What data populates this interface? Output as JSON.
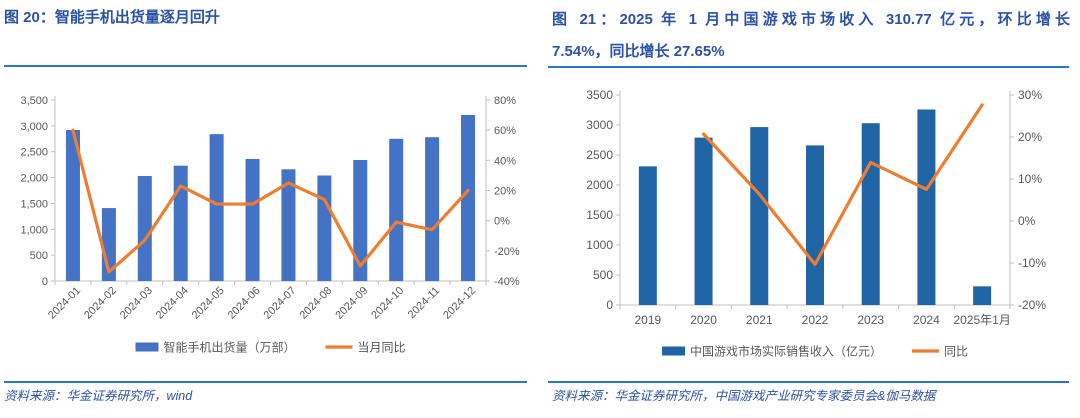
{
  "colors": {
    "title_blue": "#2B52A6",
    "rule_blue": "#2B74C8",
    "source_blue": "#2B52A6",
    "axis_text": "#595959",
    "axis_line": "#BFBFBF",
    "bar_blue_left_chart": "#4472C4",
    "bar_blue_right_chart": "#1F64A5",
    "line_orange": "#ED7D31"
  },
  "left_panel": {
    "title": "图 20：智能手机出货量逐月回升",
    "source": "资料来源：华金证券研究所，wind"
  },
  "right_panel": {
    "title_lines": [
      "图 21：2025 年 1 月中国游戏市场收入 310.77 亿元，环比增长",
      "7.54%，同比增长 27.65%"
    ],
    "source": "资料来源：华金证券研究所，中国游戏产业研究专家委员会&伽马数据"
  },
  "chart_data": [
    {
      "type": "bar",
      "title": "图 20：智能手机出货量逐月回升",
      "categories": [
        "2024-01",
        "2024-02",
        "2024-03",
        "2024-04",
        "2024-05",
        "2024-06",
        "2024-07",
        "2024-08",
        "2024-09",
        "2024-10",
        "2024-11",
        "2024-12"
      ],
      "series": [
        {
          "name": "智能手机出货量（万部）",
          "type": "bar",
          "axis": "left",
          "values": [
            2920,
            1410,
            2030,
            2230,
            2840,
            2360,
            2160,
            2040,
            2340,
            2750,
            2780,
            3210
          ]
        },
        {
          "name": "当月同比",
          "type": "line",
          "axis": "right",
          "values": [
            60,
            -34,
            -13,
            23,
            11,
            11,
            25,
            14,
            -30,
            -1,
            -6,
            20
          ]
        }
      ],
      "left_axis": {
        "min": 0,
        "max": 3500,
        "step": 500,
        "format": "comma",
        "suffix": ""
      },
      "right_axis": {
        "min": -40,
        "max": 80,
        "step": 20,
        "format": "plain",
        "suffix": "%"
      },
      "legend_position": "bottom",
      "grid": false
    },
    {
      "type": "bar",
      "title": "图 21：2025 年 1 月中国游戏市场收入 310.77 亿元，环比增长 7.54%，同比增长 27.65%",
      "categories": [
        "2019",
        "2020",
        "2021",
        "2022",
        "2023",
        "2024",
        "2025年1月"
      ],
      "series": [
        {
          "name": "中国游戏市场实际销售收入（亿元）",
          "type": "bar",
          "axis": "left",
          "values": [
            2310,
            2790,
            2965,
            2660,
            3030,
            3258,
            311
          ]
        },
        {
          "name": "同比",
          "type": "line",
          "axis": "right",
          "values": [
            null,
            20.71,
            6.4,
            -10.33,
            13.95,
            7.53,
            27.65
          ]
        }
      ],
      "left_axis": {
        "min": 0,
        "max": 3500,
        "step": 500,
        "format": "plain",
        "suffix": ""
      },
      "right_axis": {
        "min": -20,
        "max": 30,
        "step": 10,
        "format": "plain",
        "suffix": "%"
      },
      "legend_position": "bottom",
      "grid": false
    }
  ]
}
